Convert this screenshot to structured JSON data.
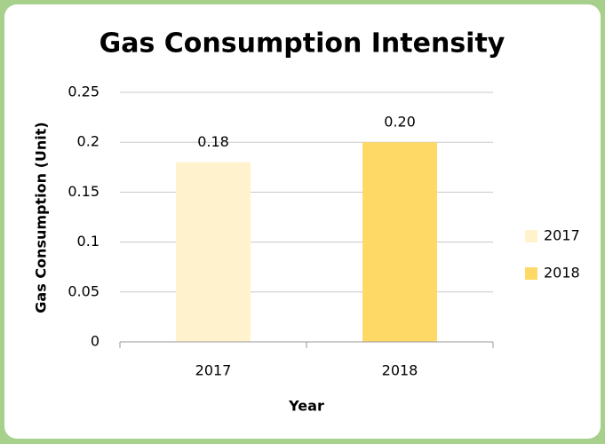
{
  "chart_data": {
    "type": "bar",
    "title": "Gas Consumption Intensity",
    "x_label": "Year",
    "y_label": "Gas Consumption (Unit)",
    "categories": [
      "2017",
      "2018"
    ],
    "series": [
      {
        "name": "2017",
        "color": "#fff2cc",
        "values": [
          0.18,
          null
        ],
        "value_labels": [
          "0.18",
          null
        ]
      },
      {
        "name": "2018",
        "color": "#ffd966",
        "values": [
          null,
          0.2
        ],
        "value_labels": [
          null,
          "0.20"
        ]
      }
    ],
    "ylim": [
      0,
      0.25
    ],
    "yticks": [
      0,
      0.05,
      0.1,
      0.15,
      0.2,
      0.25
    ],
    "grid": true,
    "legend": "right"
  }
}
